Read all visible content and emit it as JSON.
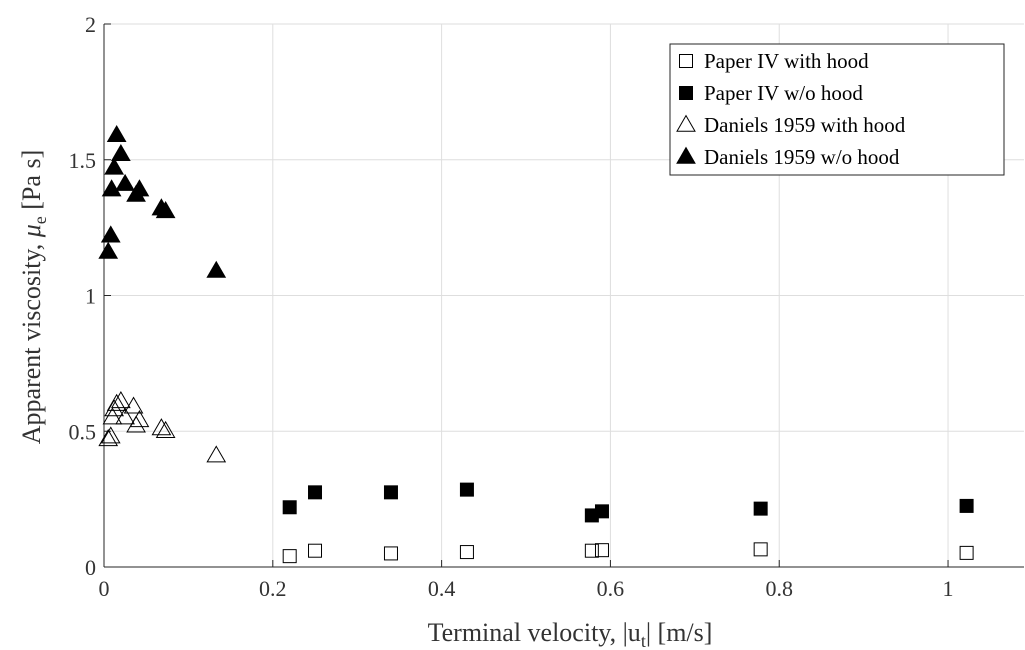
{
  "chart_data": {
    "type": "scatter",
    "title": "",
    "xlabel": "Terminal velocity, |u",
    "xlabel_sub": "t",
    "xlabel_unit": "| [m/s]",
    "ylabel": "Apparent viscosity, ",
    "ylabel_symbol": "μ",
    "ylabel_sub": "e",
    "ylabel_unit": " [Pa s]",
    "xlim": [
      0,
      1.09
    ],
    "ylim": [
      0,
      2
    ],
    "xticks": [
      0,
      0.2,
      0.4,
      0.6,
      0.8,
      1
    ],
    "xtick_labels": [
      "0",
      "0.2",
      "0.4",
      "0.6",
      "0.8",
      "1"
    ],
    "yticks": [
      0,
      0.5,
      1,
      1.5,
      2
    ],
    "ytick_labels": [
      "0",
      "0.5",
      "1",
      "1.5",
      "2"
    ],
    "grid": true,
    "legend_position": "top-right",
    "series": [
      {
        "name": "Paper IV with hood",
        "marker": "square-open",
        "x": [
          0.22,
          0.25,
          0.34,
          0.43,
          0.578,
          0.59,
          0.778,
          1.022
        ],
        "y": [
          0.04,
          0.06,
          0.05,
          0.055,
          0.06,
          0.062,
          0.065,
          0.052
        ]
      },
      {
        "name": "Paper IV w/o hood",
        "marker": "square-filled",
        "x": [
          0.22,
          0.25,
          0.34,
          0.43,
          0.578,
          0.59,
          0.778,
          1.022
        ],
        "y": [
          0.22,
          0.275,
          0.275,
          0.285,
          0.19,
          0.205,
          0.215,
          0.225
        ]
      },
      {
        "name": "Daniels 1959 with hood",
        "marker": "triangle-open",
        "x": [
          0.005,
          0.008,
          0.01,
          0.012,
          0.015,
          0.02,
          0.025,
          0.035,
          0.038,
          0.042,
          0.068,
          0.073,
          0.133
        ],
        "y": [
          0.47,
          0.48,
          0.55,
          0.58,
          0.6,
          0.61,
          0.55,
          0.59,
          0.52,
          0.54,
          0.51,
          0.5,
          0.41
        ]
      },
      {
        "name": "Daniels 1959 w/o hood",
        "marker": "triangle-filled",
        "x": [
          0.005,
          0.008,
          0.009,
          0.012,
          0.015,
          0.02,
          0.025,
          0.038,
          0.042,
          0.068,
          0.073,
          0.133
        ],
        "y": [
          1.16,
          1.22,
          1.39,
          1.47,
          1.59,
          1.52,
          1.41,
          1.37,
          1.39,
          1.32,
          1.31,
          1.09
        ]
      }
    ]
  }
}
